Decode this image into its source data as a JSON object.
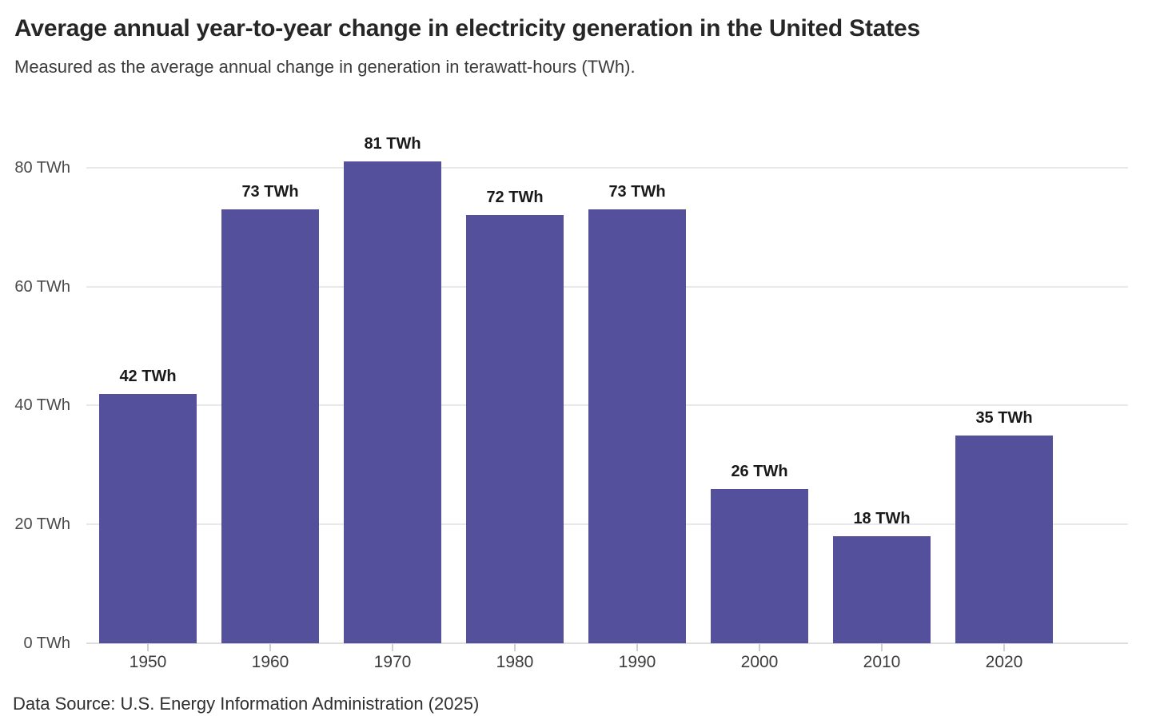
{
  "header": {
    "title": "Average annual year-to-year change in electricity generation in the United States",
    "subtitle": "Measured as the average annual change in generation in terawatt-hours (TWh)."
  },
  "footer": {
    "source": "Data Source: U.S. Energy Information Administration (2025)"
  },
  "colors": {
    "bar": "#54509b",
    "gridline": "#e9e9e9",
    "axis_line": "#dddddd",
    "tick": "#cfcfcf"
  },
  "chart_data": {
    "type": "bar",
    "title": "Average annual year-to-year change in electricity generation in the United States",
    "subtitle": "Measured as the average annual change in generation in terawatt-hours (TWh).",
    "categories": [
      "1950",
      "1960",
      "1970",
      "1980",
      "1990",
      "2000",
      "2010",
      "2020"
    ],
    "values": [
      42,
      73,
      81,
      72,
      73,
      26,
      18,
      35
    ],
    "bar_labels": [
      "42 TWh",
      "73 TWh",
      "81 TWh",
      "72 TWh",
      "73 TWh",
      "26 TWh",
      "18 TWh",
      "35 TWh"
    ],
    "unit": "TWh",
    "xlabel": "",
    "ylabel": "",
    "y_ticks": [
      0,
      20,
      40,
      60,
      80
    ],
    "y_tick_labels": [
      "0 TWh",
      "20 TWh",
      "40 TWh",
      "60 TWh",
      "80 TWh"
    ],
    "ylim": [
      0,
      84
    ],
    "grid": "horizontal",
    "legend": "none",
    "source": "Data Source: U.S. Energy Information Administration (2025)"
  }
}
